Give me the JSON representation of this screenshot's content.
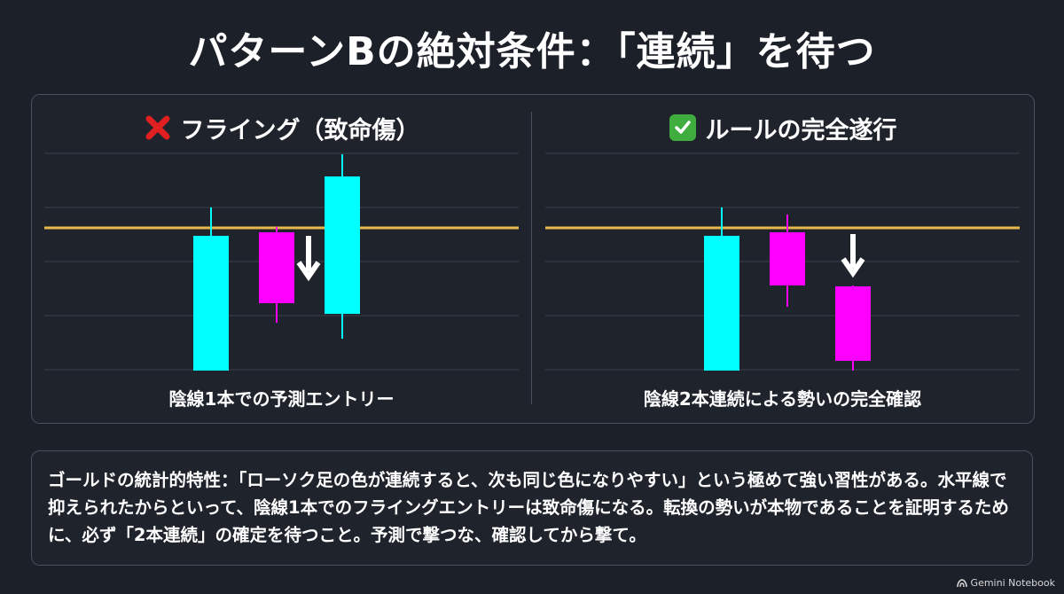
{
  "title": "パターンBの絶対条件：「連続」を待つ",
  "left": {
    "heading": "フライング（致命傷）",
    "icon": "cross-mark-icon",
    "caption": "陰線1本での予測エントリー"
  },
  "right": {
    "heading": "ルールの完全遂行",
    "icon": "check-mark-icon",
    "caption": "陰線2本連続による勢いの完全確認"
  },
  "note": "ゴールドの統計的特性：「ローソク足の色が連続すると、次も同じ色になりやすい」という極めて強い習性がある。水平線で抑えられたからといって、陰線1本でのフライングエントリーは致命傷になる。転換の勢いが本物であることを証明するために、必ず「2本連続」の確定を待つこと。予測で撃つな、確認してから撃て。",
  "brand": "Gemini Notebook",
  "colors": {
    "bullish": "#00ffff",
    "bearish": "#ff00ff",
    "level_line": "#e8b84a",
    "cross": "#e02020",
    "check": "#3fae3f"
  }
}
